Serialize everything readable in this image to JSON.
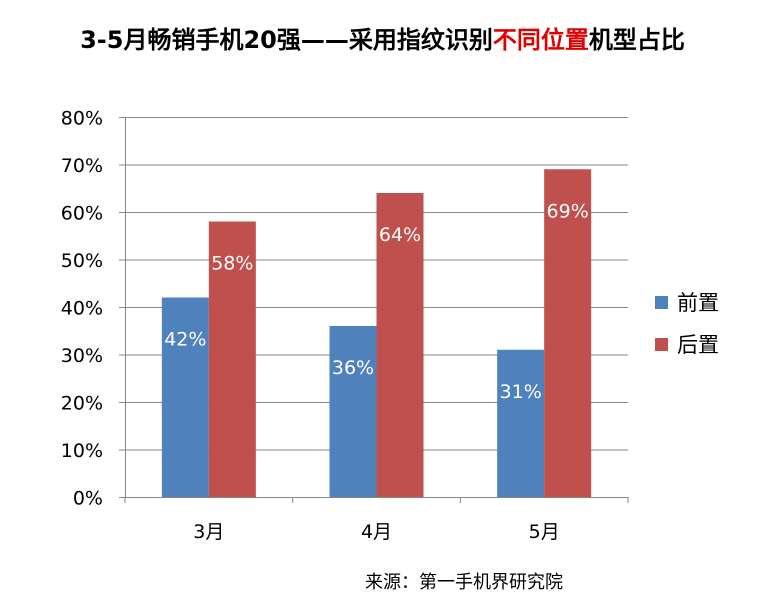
{
  "title": {
    "part1": "3-5月畅销手机20强——采用指纹识别",
    "highlight": "不同位置",
    "part2": "机型占比"
  },
  "source": "来源：第一手机界研究院",
  "chart_data": {
    "type": "bar",
    "title": "3-5月畅销手机20强——采用指纹识别不同位置机型占比",
    "categories": [
      "3月",
      "4月",
      "5月"
    ],
    "series": [
      {
        "name": "前置",
        "values": [
          42,
          36,
          31
        ],
        "labels": [
          "42%",
          "36%",
          "31%"
        ],
        "color": "#4F81BD"
      },
      {
        "name": "后置",
        "values": [
          58,
          64,
          69
        ],
        "labels": [
          "58%",
          "64%",
          "69%"
        ],
        "color": "#C0504D"
      }
    ],
    "ylim": [
      0,
      80
    ],
    "yticks": [
      "0%",
      "10%",
      "20%",
      "30%",
      "40%",
      "50%",
      "60%",
      "70%",
      "80%"
    ],
    "grid": true,
    "legend": "right"
  }
}
